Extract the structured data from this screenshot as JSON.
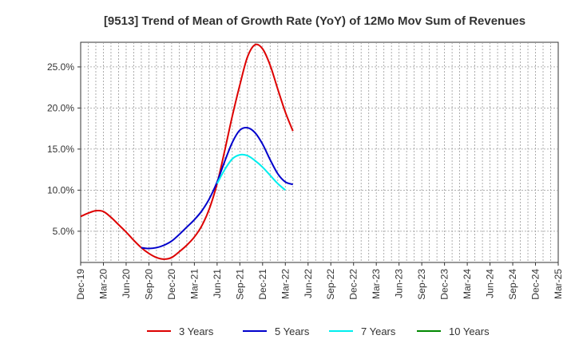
{
  "chart_data": {
    "type": "line",
    "title": "[9513]  Trend of Mean of Growth Rate (YoY) of 12Mo Mov Sum of Revenues",
    "xlabel": "",
    "ylabel": "",
    "x_ticks": [
      "Dec-19",
      "Mar-20",
      "Jun-20",
      "Sep-20",
      "Dec-20",
      "Mar-21",
      "Jun-21",
      "Sep-21",
      "Dec-21",
      "Mar-22",
      "Jun-22",
      "Sep-22",
      "Dec-22",
      "Mar-23",
      "Jun-23",
      "Sep-23",
      "Dec-23",
      "Mar-24",
      "Jun-24",
      "Sep-24",
      "Dec-24",
      "Mar-25"
    ],
    "y_ticks": [
      "5.0%",
      "10.0%",
      "15.0%",
      "20.0%",
      "25.0%"
    ],
    "y_tick_values": [
      5,
      10,
      15,
      20,
      25
    ],
    "ylim": [
      1.2,
      28.0
    ],
    "grid": true,
    "legend_position": "bottom",
    "series": [
      {
        "name": "3 Years",
        "color": "#dd0000",
        "points": [
          [
            0,
            6.8
          ],
          [
            1,
            7.2
          ],
          [
            2,
            7.5
          ],
          [
            3,
            7.4
          ],
          [
            4,
            6.7
          ],
          [
            5,
            5.8
          ],
          [
            6,
            4.9
          ],
          [
            7,
            3.9
          ],
          [
            8,
            3.0
          ],
          [
            9,
            2.3
          ],
          [
            10,
            1.8
          ],
          [
            11,
            1.6
          ],
          [
            12,
            1.8
          ],
          [
            13,
            2.5
          ],
          [
            14,
            3.3
          ],
          [
            15,
            4.3
          ],
          [
            16,
            5.7
          ],
          [
            17,
            7.8
          ],
          [
            18,
            10.8
          ],
          [
            19,
            14.8
          ],
          [
            20,
            19.0
          ],
          [
            21,
            22.8
          ],
          [
            22,
            26.2
          ],
          [
            23,
            27.7
          ],
          [
            24,
            27.2
          ],
          [
            25,
            25.2
          ],
          [
            26,
            22.3
          ],
          [
            27,
            19.5
          ],
          [
            28,
            17.2
          ]
        ]
      },
      {
        "name": "5 Years",
        "color": "#0000cc",
        "points": [
          [
            8,
            3.0
          ],
          [
            9,
            2.9
          ],
          [
            10,
            3.0
          ],
          [
            11,
            3.3
          ],
          [
            12,
            3.8
          ],
          [
            13,
            4.6
          ],
          [
            14,
            5.5
          ],
          [
            15,
            6.4
          ],
          [
            16,
            7.5
          ],
          [
            17,
            9.0
          ],
          [
            18,
            11.0
          ],
          [
            19,
            13.5
          ],
          [
            20,
            15.8
          ],
          [
            21,
            17.3
          ],
          [
            22,
            17.6
          ],
          [
            23,
            17.0
          ],
          [
            24,
            15.6
          ],
          [
            25,
            13.7
          ],
          [
            26,
            12.0
          ],
          [
            27,
            11.0
          ],
          [
            28,
            10.7
          ]
        ]
      },
      {
        "name": "7 Years",
        "color": "#00eeee",
        "points": [
          [
            18,
            10.8
          ],
          [
            19,
            12.5
          ],
          [
            20,
            13.8
          ],
          [
            21,
            14.3
          ],
          [
            22,
            14.2
          ],
          [
            23,
            13.6
          ],
          [
            24,
            12.8
          ],
          [
            25,
            11.8
          ],
          [
            26,
            10.8
          ],
          [
            27,
            10.0
          ]
        ]
      },
      {
        "name": "10 Years",
        "color": "#008800",
        "points": []
      }
    ]
  }
}
